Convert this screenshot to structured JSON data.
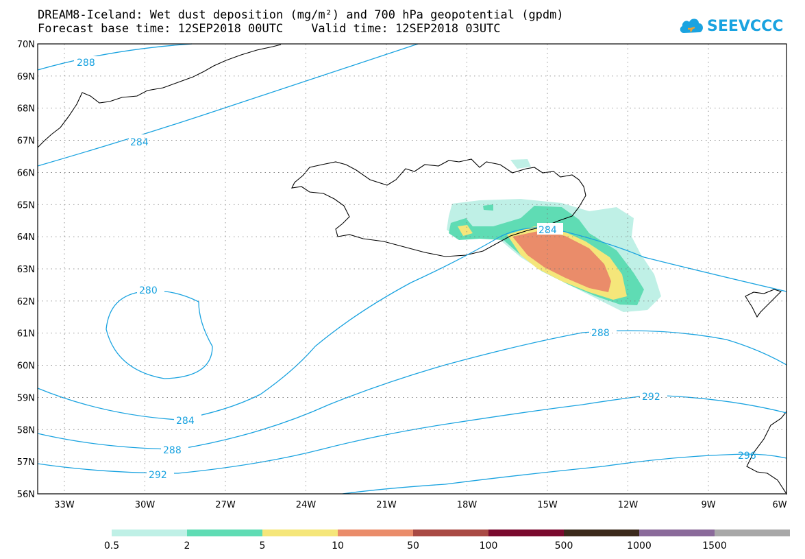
{
  "header": {
    "title_line1": "DREAM8-Iceland: Wet dust deposition (mg/m²) and 700 hPa geopotential (gpdm)",
    "forecast_label": "Forecast base time: 12SEP2018 00UTC",
    "valid_label": "Valid time: 12SEP2018 03UTC"
  },
  "logo": {
    "text": "SEEVCCC",
    "color": "#1aa3e0"
  },
  "map": {
    "lat_labels": [
      "70N",
      "69N",
      "68N",
      "67N",
      "66N",
      "65N",
      "64N",
      "63N",
      "62N",
      "61N",
      "60N",
      "59N",
      "58N",
      "57N",
      "56N"
    ],
    "lon_labels": [
      "33W",
      "30W",
      "27W",
      "24W",
      "21W",
      "18W",
      "15W",
      "12W",
      "9W",
      "6W"
    ],
    "contour_color": "#1aa3e0",
    "contour_labels": [
      "288",
      "284",
      "280",
      "284",
      "288",
      "292",
      "288",
      "292",
      "296",
      "284"
    ]
  },
  "colorbar": {
    "colors": [
      "#bff0e6",
      "#5fdcb4",
      "#f5e67a",
      "#ea8c6a",
      "#a94a44",
      "#7a0a2e",
      "#3c2a1c",
      "#8a6a9a",
      "#a8a8a8"
    ],
    "labels": [
      "0.5",
      "2",
      "5",
      "10",
      "50",
      "100",
      "500",
      "1000",
      "1500"
    ]
  }
}
